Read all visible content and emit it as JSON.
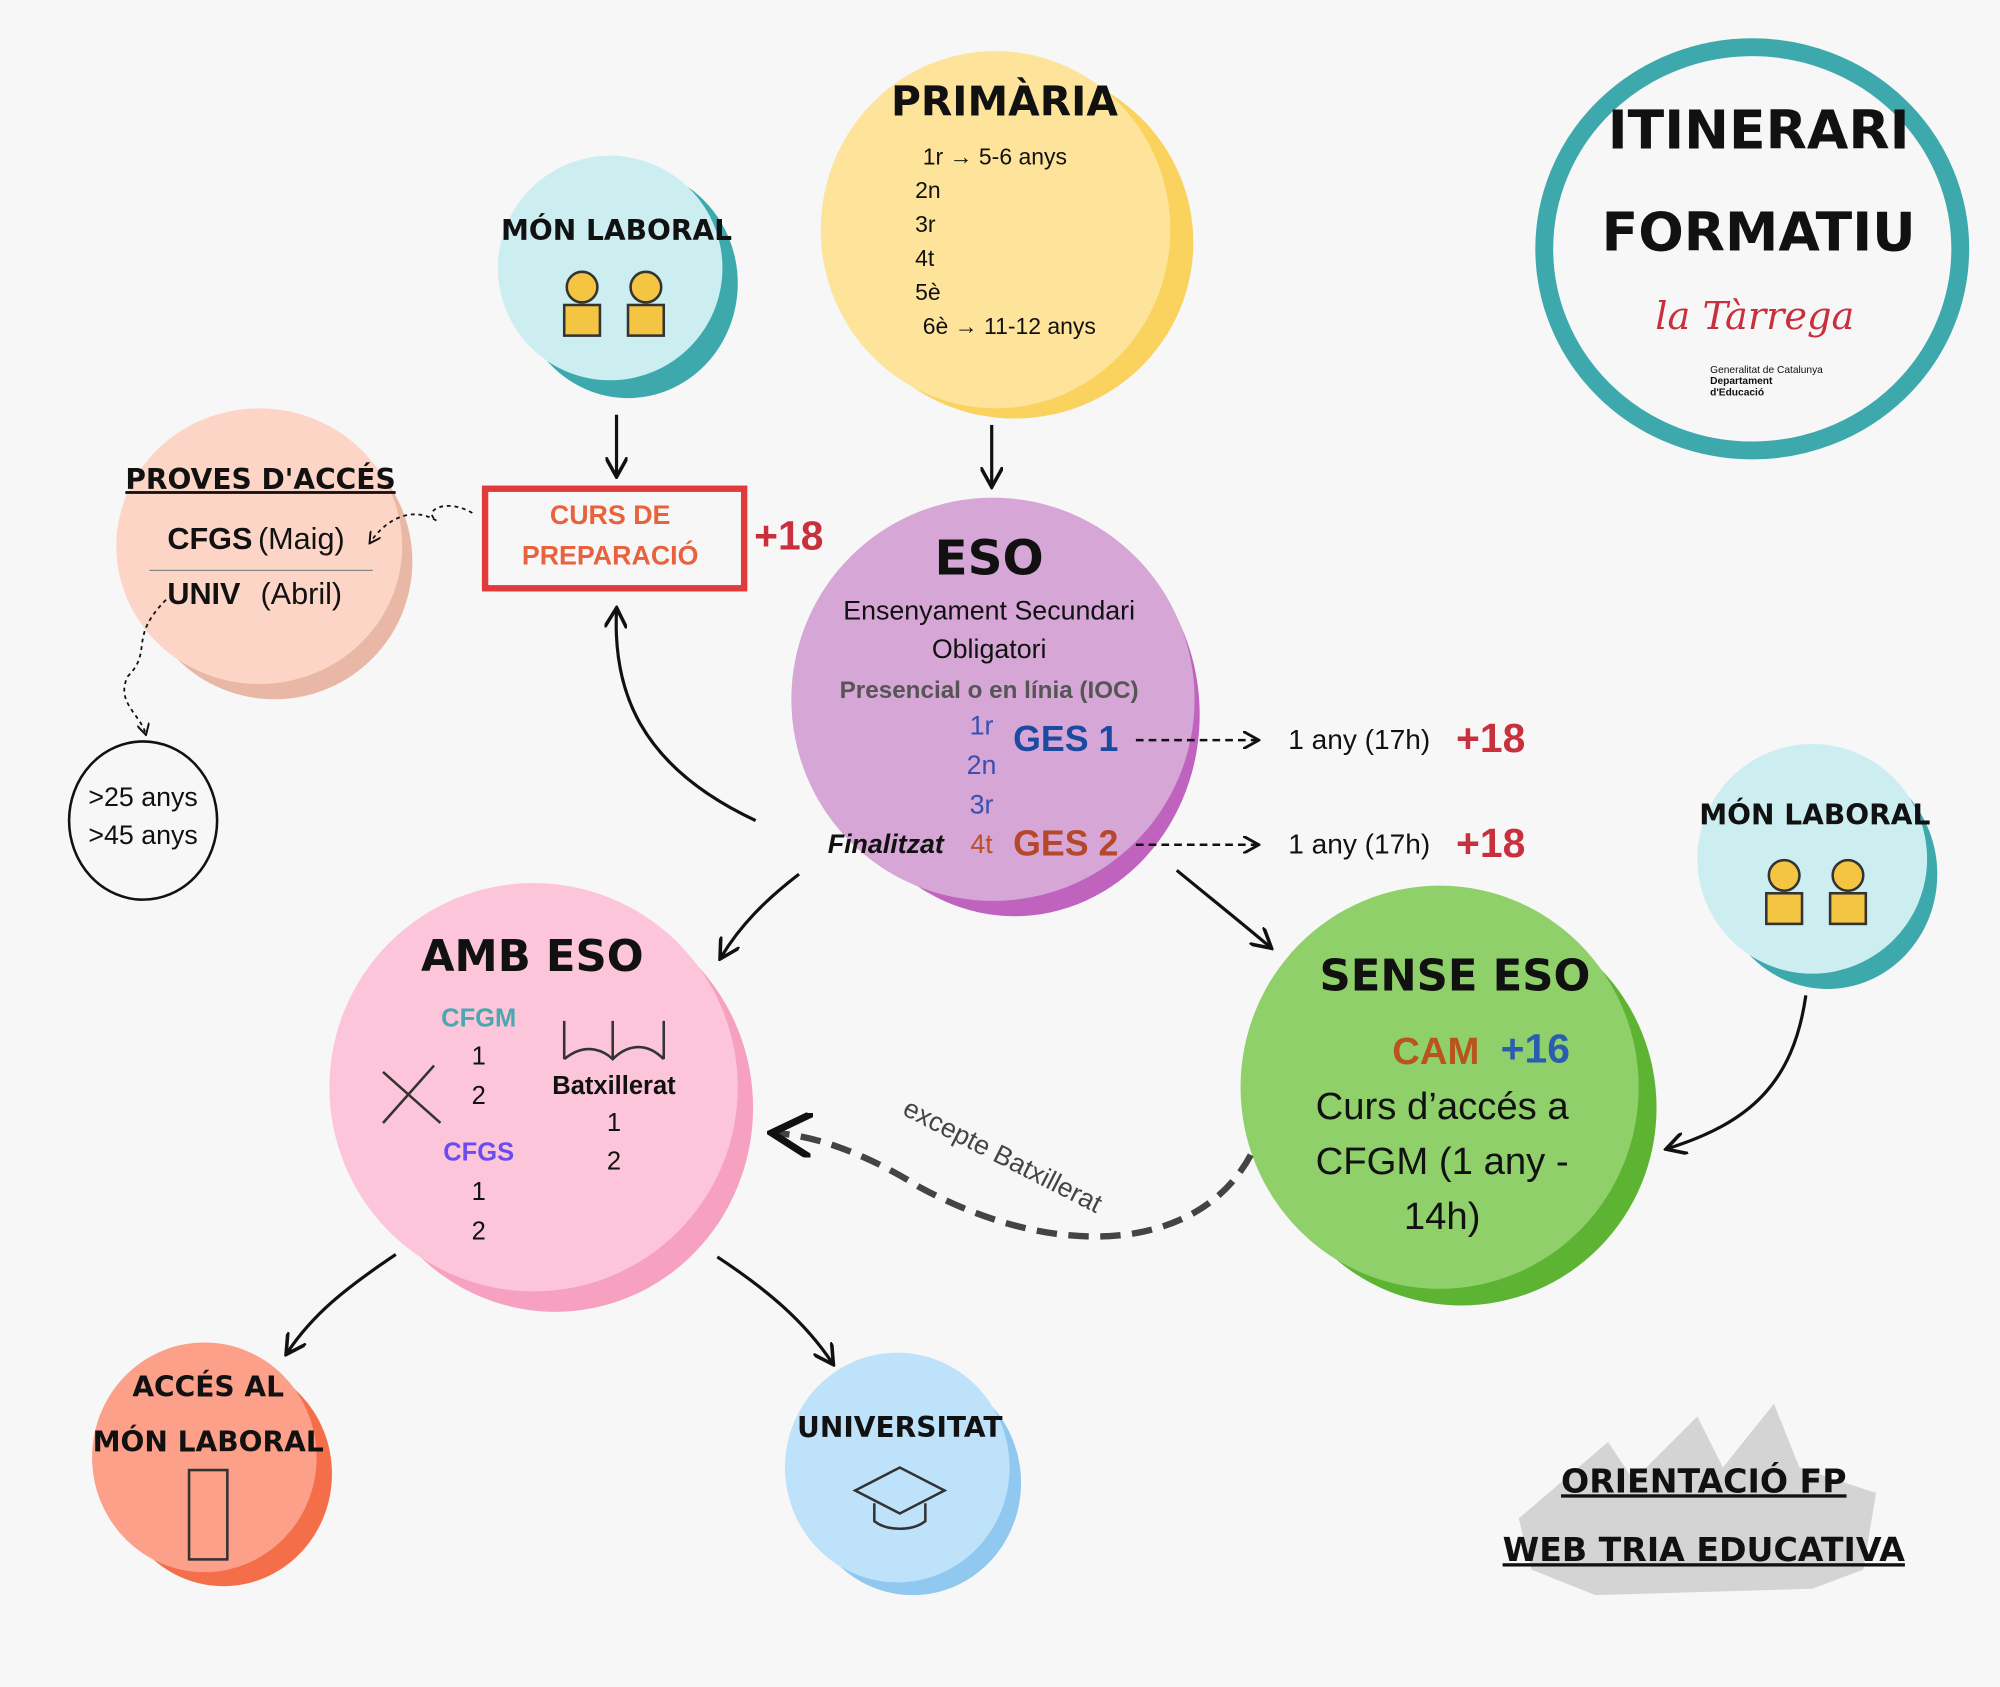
{
  "title": {
    "lines": [
      "ITINERARI",
      "FORMATIU"
    ],
    "logo_name": "la Tàrrega",
    "logo_lines": [
      "Generalitat de Catalunya",
      "Departament",
      "d'Educació"
    ]
  },
  "primaria": {
    "title": "PRIMÀRIA",
    "lines": [
      "1r → 5-6 anys",
      "2n",
      "3r",
      "4t",
      "5è",
      "6è → 11-12 anys"
    ]
  },
  "mon_laboral_top": {
    "title": "MÓN LABORAL"
  },
  "proves": {
    "title": "PROVES D'ACCÉS",
    "cfgs": "CFGS",
    "cfgs_month": "(Maig)",
    "univ": "UNIV",
    "univ_month": "(Abril)"
  },
  "ages": [
    "&gt;25 anys",
    "&gt;45 anys"
  ],
  "curs": {
    "lines": [
      "CURS DE",
      "PREPARACIÓ"
    ],
    "age": "+18"
  },
  "eso": {
    "title": "ESO",
    "lines": [
      "Ensenyament Secundari",
      "Obligatori"
    ],
    "mode": "Presencial o en línia (IOC)",
    "grades": [
      "1r",
      "2n",
      "3r",
      "4t"
    ],
    "ges": [
      {
        "label": "GES 1",
        "duration": "1 any (17h)",
        "age": "+18"
      },
      {
        "label": "GES 2",
        "duration": "1 any (17h)",
        "age": "+18"
      }
    ],
    "finished": "Finalitzat"
  },
  "amb_eso": {
    "title": "AMB ESO",
    "cfgm": "CFGM",
    "cfgm_years": [
      "1",
      "2"
    ],
    "cfgs": "CFGS",
    "cfgs_years": [
      "1",
      "2"
    ],
    "batx": "Batxillerat",
    "batx_years": [
      "1",
      "2"
    ]
  },
  "sense_eso": {
    "title": "SENSE ESO",
    "cam": "CAM",
    "age": "+16",
    "lines": [
      "Curs d’accés a",
      "CFGM (1 any -",
      "14h)"
    ]
  },
  "except": "excepte Batxillerat",
  "mon_laboral_right": {
    "title": "MÓN LABORAL"
  },
  "acces_laboral": {
    "lines": [
      "ACCÉS AL",
      "MÓN LABORAL"
    ]
  },
  "universitat": {
    "title": "UNIVERSITAT"
  },
  "footer": {
    "lines": [
      "ORIENTACIÓ FP",
      "WEB TRIA EDUCATIVA"
    ]
  }
}
